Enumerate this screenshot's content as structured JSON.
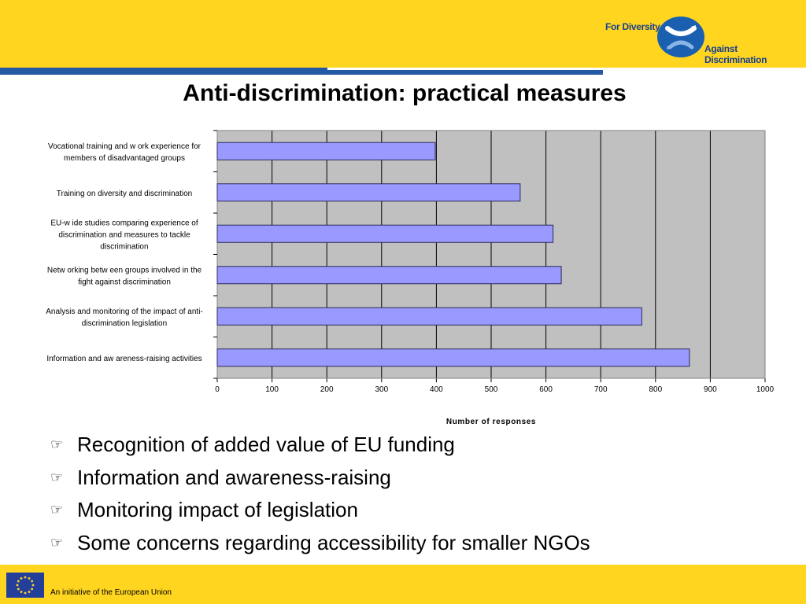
{
  "header": {
    "brand_line1": "For Diversity",
    "brand_line2": "Against Discrimination",
    "brand_colors": {
      "band": "#ffd520",
      "rule": "#2459a3",
      "logo": "#1a3f8f"
    }
  },
  "slide": {
    "title": "Anti-discrimination: practical measures"
  },
  "chart_data": {
    "type": "bar",
    "orientation": "horizontal",
    "categories": [
      "Vocational training and w ork experience for members of disadvantaged groups",
      "Training on diversity and discrimination",
      "EU-w ide studies comparing experience of discrimination and measures to tackle discrimination",
      "Netw orking betw een groups involved in the fight against discrimination",
      "Analysis and monitoring of the impact of anti-discrimination legislation",
      "Information and aw areness-raising activities"
    ],
    "category_label_lines": [
      [
        "Vocational training and w ork experience for",
        "members of disadvantaged groups"
      ],
      [
        "Training on diversity and discrimination"
      ],
      [
        "EU-w ide studies comparing experience of",
        "discrimination and measures to tackle",
        "discrimination"
      ],
      [
        "Netw orking betw een groups involved in the",
        "fight against discrimination"
      ],
      [
        "Analysis and monitoring of the impact of anti-",
        "discrimination legislation"
      ],
      [
        "Information and aw areness-raising activities"
      ]
    ],
    "values": [
      398,
      553,
      613,
      628,
      775,
      862
    ],
    "xlabel": "Number of responses",
    "ylabel": "",
    "xlim": [
      0,
      1000
    ],
    "x_ticks": [
      "0",
      "100",
      "200",
      "300",
      "400",
      "500",
      "600",
      "700",
      "800",
      "900",
      "1000"
    ],
    "grid": true,
    "legend": "none",
    "colors": {
      "bar": "#9999ff",
      "plot_bg": "#c0c0c0"
    }
  },
  "bullets": [
    {
      "icon": "pointing-hand-icon",
      "text": "Recognition of added value of EU funding"
    },
    {
      "icon": "pointing-hand-icon",
      "text": "Information and awareness-raising"
    },
    {
      "icon": "pointing-hand-icon",
      "text": "Monitoring impact of legislation"
    },
    {
      "icon": "pointing-hand-icon",
      "text": "Some concerns regarding accessibility for smaller NGOs"
    }
  ],
  "footer": {
    "text": "An initiative of the European Union",
    "flag_color": "#233f9a",
    "star_color": "#ffd520"
  }
}
